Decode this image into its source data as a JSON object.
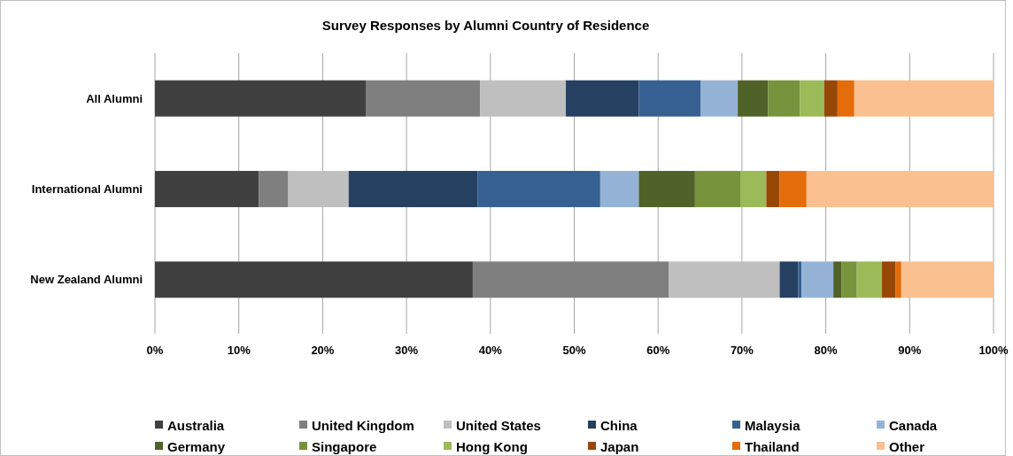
{
  "chart_data": {
    "type": "bar",
    "title": "Survey Responses by Alumni Country of Residence",
    "orientation": "horizontal",
    "stacked": true,
    "categories": [
      "All Alumni",
      "International Alumni",
      "New Zealand Alumni"
    ],
    "series": [
      {
        "name": "Australia",
        "color": "#404040",
        "values": [
          25.2,
          12.4,
          37.9
        ]
      },
      {
        "name": "United Kingdom",
        "color": "#7f7f7f",
        "values": [
          13.6,
          3.5,
          23.4
        ]
      },
      {
        "name": "United States",
        "color": "#bfbfbf",
        "values": [
          10.2,
          7.2,
          13.2
        ]
      },
      {
        "name": "China",
        "color": "#254061",
        "values": [
          8.7,
          15.4,
          2.2
        ]
      },
      {
        "name": "Malaysia",
        "color": "#366092",
        "values": [
          7.4,
          14.6,
          0.4
        ]
      },
      {
        "name": "Canada",
        "color": "#95b3d7",
        "values": [
          4.4,
          4.6,
          3.8
        ]
      },
      {
        "name": "Germany",
        "color": "#4f6228",
        "values": [
          3.6,
          6.7,
          1.0
        ]
      },
      {
        "name": "Singapore",
        "color": "#77933c",
        "values": [
          3.8,
          5.4,
          1.8
        ]
      },
      {
        "name": "Hong Kong",
        "color": "#9bbb59",
        "values": [
          2.9,
          3.1,
          3.0
        ]
      },
      {
        "name": "Japan",
        "color": "#974806",
        "values": [
          1.6,
          1.6,
          1.6
        ]
      },
      {
        "name": "Thailand",
        "color": "#e46c0a",
        "values": [
          2.0,
          3.2,
          0.7
        ]
      },
      {
        "name": "Other",
        "color": "#fac090",
        "values": [
          16.6,
          22.3,
          11.0
        ]
      }
    ],
    "xlim": [
      0,
      100
    ],
    "xticks": [
      {
        "value": 0,
        "label": "0%"
      },
      {
        "value": 10,
        "label": "10%"
      },
      {
        "value": 20,
        "label": "20%"
      },
      {
        "value": 30,
        "label": "30%"
      },
      {
        "value": 40,
        "label": "40%"
      },
      {
        "value": 50,
        "label": "50%"
      },
      {
        "value": 60,
        "label": "60%"
      },
      {
        "value": 70,
        "label": "70%"
      },
      {
        "value": 80,
        "label": "80%"
      },
      {
        "value": 90,
        "label": "90%"
      },
      {
        "value": 100,
        "label": "100%"
      }
    ],
    "grid": "x",
    "legend": "bottom"
  }
}
